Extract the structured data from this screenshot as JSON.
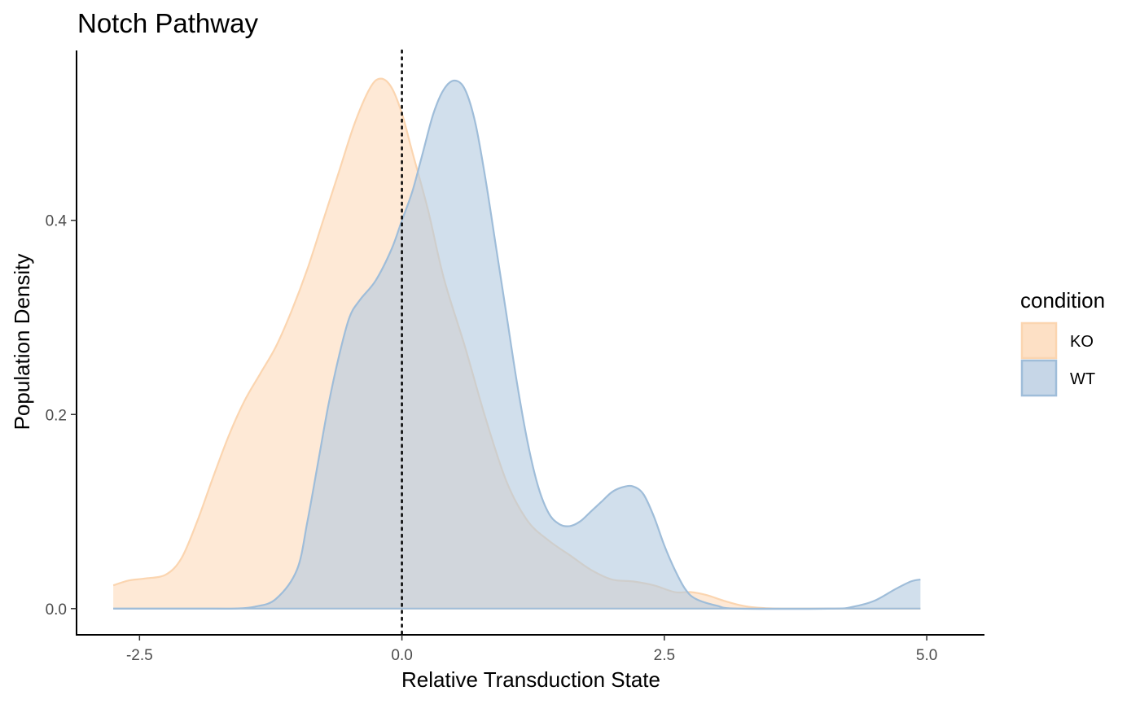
{
  "chart_data": {
    "type": "area",
    "title": "Notch Pathway",
    "xlabel": "Relative Transduction State",
    "ylabel": "Population Density",
    "xlim": [
      -3.1,
      5.55
    ],
    "ylim": [
      -0.027,
      0.575
    ],
    "x_ticks": [
      -2.5,
      0.0,
      2.5,
      5.0
    ],
    "x_tick_labels": [
      "-2.5",
      "0.0",
      "2.5",
      "5.0"
    ],
    "y_ticks": [
      0.0,
      0.2,
      0.4
    ],
    "y_tick_labels": [
      "0.0",
      "0.2",
      "0.4"
    ],
    "grid": false,
    "reference_line": {
      "x": 0.0,
      "style": "dotted"
    },
    "legend": {
      "title": "condition",
      "position": "right"
    },
    "series": [
      {
        "name": "KO",
        "fill": "#fde0c5",
        "stroke": "#fbd5b0",
        "fill_opacity": 0.7,
        "points": [
          [
            -2.75,
            0.024
          ],
          [
            -2.6,
            0.029
          ],
          [
            -2.45,
            0.031
          ],
          [
            -2.25,
            0.035
          ],
          [
            -2.1,
            0.052
          ],
          [
            -1.95,
            0.09
          ],
          [
            -1.8,
            0.135
          ],
          [
            -1.65,
            0.178
          ],
          [
            -1.5,
            0.214
          ],
          [
            -1.35,
            0.242
          ],
          [
            -1.2,
            0.27
          ],
          [
            -1.05,
            0.307
          ],
          [
            -0.9,
            0.35
          ],
          [
            -0.75,
            0.4
          ],
          [
            -0.6,
            0.45
          ],
          [
            -0.45,
            0.5
          ],
          [
            -0.3,
            0.537
          ],
          [
            -0.2,
            0.546
          ],
          [
            -0.1,
            0.537
          ],
          [
            0.0,
            0.51
          ],
          [
            0.1,
            0.47
          ],
          [
            0.25,
            0.41
          ],
          [
            0.4,
            0.34
          ],
          [
            0.6,
            0.27
          ],
          [
            0.8,
            0.195
          ],
          [
            1.0,
            0.13
          ],
          [
            1.2,
            0.09
          ],
          [
            1.4,
            0.07
          ],
          [
            1.6,
            0.055
          ],
          [
            1.8,
            0.04
          ],
          [
            2.0,
            0.03
          ],
          [
            2.2,
            0.028
          ],
          [
            2.4,
            0.024
          ],
          [
            2.6,
            0.017
          ],
          [
            2.75,
            0.017
          ],
          [
            2.9,
            0.014
          ],
          [
            3.1,
            0.007
          ],
          [
            3.3,
            0.002
          ],
          [
            3.6,
            0.0
          ],
          [
            4.2,
            0.0
          ],
          [
            4.94,
            0.0
          ]
        ]
      },
      {
        "name": "WT",
        "fill": "#b3c9e0",
        "stroke": "#9fbdd9",
        "fill_opacity": 0.6,
        "points": [
          [
            -2.75,
            0.0
          ],
          [
            -1.8,
            0.0
          ],
          [
            -1.6,
            0.0
          ],
          [
            -1.4,
            0.002
          ],
          [
            -1.2,
            0.01
          ],
          [
            -1.0,
            0.04
          ],
          [
            -0.9,
            0.09
          ],
          [
            -0.8,
            0.15
          ],
          [
            -0.7,
            0.21
          ],
          [
            -0.6,
            0.26
          ],
          [
            -0.5,
            0.3
          ],
          [
            -0.4,
            0.318
          ],
          [
            -0.25,
            0.338
          ],
          [
            -0.1,
            0.37
          ],
          [
            0.0,
            0.4
          ],
          [
            0.1,
            0.43
          ],
          [
            0.2,
            0.47
          ],
          [
            0.3,
            0.51
          ],
          [
            0.4,
            0.535
          ],
          [
            0.5,
            0.544
          ],
          [
            0.6,
            0.535
          ],
          [
            0.7,
            0.5
          ],
          [
            0.8,
            0.44
          ],
          [
            0.9,
            0.37
          ],
          [
            1.0,
            0.3
          ],
          [
            1.1,
            0.23
          ],
          [
            1.2,
            0.17
          ],
          [
            1.3,
            0.125
          ],
          [
            1.4,
            0.098
          ],
          [
            1.5,
            0.087
          ],
          [
            1.6,
            0.085
          ],
          [
            1.7,
            0.09
          ],
          [
            1.8,
            0.1
          ],
          [
            1.9,
            0.11
          ],
          [
            2.0,
            0.12
          ],
          [
            2.1,
            0.125
          ],
          [
            2.2,
            0.126
          ],
          [
            2.3,
            0.118
          ],
          [
            2.4,
            0.095
          ],
          [
            2.5,
            0.065
          ],
          [
            2.6,
            0.04
          ],
          [
            2.7,
            0.02
          ],
          [
            2.8,
            0.01
          ],
          [
            3.0,
            0.003
          ],
          [
            3.2,
            0.0
          ],
          [
            4.1,
            0.0
          ],
          [
            4.3,
            0.002
          ],
          [
            4.5,
            0.008
          ],
          [
            4.7,
            0.02
          ],
          [
            4.85,
            0.028
          ],
          [
            4.94,
            0.03
          ]
        ]
      }
    ]
  },
  "colors": {
    "background": "#ffffff",
    "axis_line": "#000000",
    "tick_label": "#4d4d4d",
    "ref_line": "#000000"
  }
}
